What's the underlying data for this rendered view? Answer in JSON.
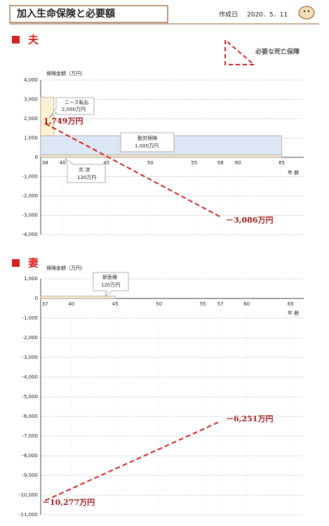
{
  "header": {
    "title": "加入生命保険と必要額",
    "date_label": "作成日",
    "date": "2020．5．11"
  },
  "chart_data": [
    {
      "type": "combo",
      "section": "夫",
      "y_label": "保険金額（万円）",
      "x_label": "年 齢",
      "xlim": [
        37.5,
        67.5
      ],
      "xticks": [
        38,
        40,
        45,
        50,
        55,
        58,
        60,
        65
      ],
      "ylim": [
        -4000,
        4000
      ],
      "yticks": [
        {
          "value": 4000,
          "label": "4,000"
        },
        {
          "value": 3000,
          "label": "3,000"
        },
        {
          "value": 2000,
          "label": "2,000"
        },
        {
          "value": 1000,
          "label": "1,000"
        },
        0,
        {
          "value": -1000,
          "label": "-1,000"
        },
        {
          "value": -2000,
          "label": "-2,000"
        },
        {
          "value": -3000,
          "label": "-3,000"
        },
        {
          "value": -4000,
          "label": "-4,000"
        }
      ],
      "grid": true,
      "bars": [
        {
          "name": "共 済",
          "value": 120,
          "value_label": "120万円",
          "xrange": [
            37.5,
            65
          ],
          "color": "#f6e7d2"
        },
        {
          "name": "勤労保険",
          "value": 1000,
          "value_label": "1,000万円",
          "xrange": [
            37.5,
            65
          ],
          "color": "#dce6f4"
        },
        {
          "name": "ニース転払",
          "value": 2000,
          "value_label": "2,000万円",
          "xrange": [
            37.5,
            39
          ],
          "color": "#fdefd2"
        }
      ],
      "line": {
        "name": "必要な死亡保障",
        "x": [
          38,
          58
        ],
        "values": [
          1749,
          -3086
        ],
        "value_labels": [
          "1,749万円",
          "－3,086万円"
        ],
        "color": "#d42020"
      }
    },
    {
      "type": "combo",
      "section": "妻",
      "y_label": "保険金額（万円）",
      "x_label": "年 齢",
      "xlim": [
        36.5,
        66.5
      ],
      "xticks": [
        37,
        40,
        45,
        50,
        55,
        57,
        60,
        65
      ],
      "ylim": [
        -11000,
        1000
      ],
      "yticks": [
        {
          "value": 1000,
          "label": "1,000"
        },
        0,
        {
          "value": -1000,
          "label": "-1,000"
        },
        {
          "value": -2000,
          "label": "-2,000"
        },
        {
          "value": -3000,
          "label": "-3,000"
        },
        {
          "value": -4000,
          "label": "-4,000"
        },
        {
          "value": -5000,
          "label": "-5,000"
        },
        {
          "value": -6000,
          "label": "-6,000"
        },
        {
          "value": -7000,
          "label": "-7,000"
        },
        {
          "value": -8000,
          "label": "-8,000"
        },
        {
          "value": -9000,
          "label": "-9,000"
        },
        {
          "value": -10000,
          "label": "-10,000"
        },
        {
          "value": -11000,
          "label": "-11,000"
        }
      ],
      "grid": true,
      "bars": [
        {
          "name": "新医療",
          "value": 120,
          "value_label": "120万円",
          "xrange": [
            36.5,
            45
          ],
          "color": "#f6e7d2"
        }
      ],
      "line": {
        "x": [
          37,
          57
        ],
        "values": [
          -10277,
          -6251
        ],
        "value_labels": [
          "－10,277万円",
          "－6,251万円"
        ],
        "color": "#d42020"
      }
    }
  ]
}
